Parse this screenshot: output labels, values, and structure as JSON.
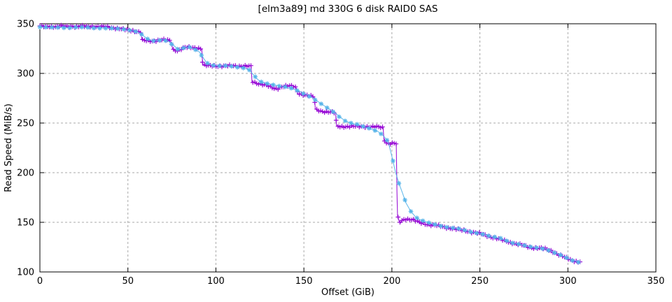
{
  "chart_data": {
    "type": "line",
    "title": "[elm3a89] md 330G 6 disk RAID0 SAS",
    "xlabel": "Offset (GiB)",
    "ylabel": "Read Speed (MiB/s)",
    "xlim": [
      0,
      350
    ],
    "ylim": [
      100,
      350
    ],
    "x_ticks": [
      0,
      50,
      100,
      150,
      200,
      250,
      300,
      350
    ],
    "y_ticks": [
      100,
      150,
      200,
      250,
      300,
      350
    ],
    "grid": true,
    "legend_position": "none",
    "background_color": "#ffffff",
    "series": [
      {
        "name": "raw-read-speed-purple-plus",
        "marker": "plus",
        "color": "#9400d3",
        "marker_spacing_gib": 1.1,
        "noise_amp": 1.0,
        "points": [
          [
            0,
            347.5
          ],
          [
            3,
            347
          ],
          [
            6,
            347.5
          ],
          [
            9,
            347
          ],
          [
            12,
            347.5
          ],
          [
            15,
            347
          ],
          [
            18,
            347.5
          ],
          [
            21,
            347
          ],
          [
            24,
            347.5
          ],
          [
            27,
            347
          ],
          [
            30,
            347.5
          ],
          [
            33,
            347
          ],
          [
            36,
            347
          ],
          [
            39,
            346.5
          ],
          [
            42,
            346
          ],
          [
            44,
            345.5
          ],
          [
            47,
            344.5
          ],
          [
            50,
            343.5
          ],
          [
            53,
            343
          ],
          [
            56,
            342
          ],
          [
            57.5,
            341.5
          ],
          [
            58,
            333.5
          ],
          [
            61,
            332.5
          ],
          [
            64,
            332.5
          ],
          [
            67,
            333.5
          ],
          [
            69,
            334
          ],
          [
            72,
            333.5
          ],
          [
            74.5,
            332.5
          ],
          [
            75.5,
            324
          ],
          [
            78,
            323
          ],
          [
            80,
            324.5
          ],
          [
            82,
            326
          ],
          [
            86,
            326
          ],
          [
            90,
            325.5
          ],
          [
            92,
            325
          ],
          [
            92.5,
            308.5
          ],
          [
            96,
            307.5
          ],
          [
            100,
            307.5
          ],
          [
            104,
            307.5
          ],
          [
            108,
            307.5
          ],
          [
            112,
            307.5
          ],
          [
            116,
            307.5
          ],
          [
            120,
            307
          ],
          [
            120.5,
            291.5
          ],
          [
            123,
            290
          ],
          [
            126,
            289.5
          ],
          [
            129,
            288
          ],
          [
            131,
            286
          ],
          [
            133,
            284.5
          ],
          [
            135,
            284.5
          ],
          [
            137,
            286.5
          ],
          [
            139,
            287.5
          ],
          [
            141,
            287.5
          ],
          [
            143,
            287
          ],
          [
            145,
            286
          ],
          [
            146,
            284
          ],
          [
            146.5,
            280
          ],
          [
            149,
            279
          ],
          [
            152,
            278
          ],
          [
            155,
            276.5
          ],
          [
            156,
            275.5
          ],
          [
            156.5,
            263.5
          ],
          [
            159,
            262.5
          ],
          [
            162,
            261.5
          ],
          [
            165,
            261
          ],
          [
            168,
            260
          ],
          [
            168.5,
            246.5
          ],
          [
            172,
            246.5
          ],
          [
            176,
            246.5
          ],
          [
            180,
            246.5
          ],
          [
            184,
            246.5
          ],
          [
            188,
            246
          ],
          [
            192,
            246
          ],
          [
            195,
            245.5
          ],
          [
            195.5,
            233.5
          ],
          [
            197,
            230
          ],
          [
            199,
            229.5
          ],
          [
            201,
            229.5
          ],
          [
            202.5,
            229
          ],
          [
            202.9,
            180
          ],
          [
            203.2,
            156
          ],
          [
            204,
            151
          ],
          [
            205,
            150
          ],
          [
            206,
            152.5
          ],
          [
            208,
            153.5
          ],
          [
            210,
            153
          ],
          [
            212,
            152.5
          ],
          [
            214,
            151
          ],
          [
            216,
            149.5
          ],
          [
            219,
            148.5
          ],
          [
            222,
            147.5
          ],
          [
            226,
            146.5
          ],
          [
            230,
            145
          ],
          [
            234,
            144
          ],
          [
            238,
            142.5
          ],
          [
            242,
            141.5
          ],
          [
            246,
            140
          ],
          [
            250,
            138.5
          ],
          [
            253,
            137
          ],
          [
            256,
            135.5
          ],
          [
            259,
            134
          ],
          [
            262,
            132.5
          ],
          [
            265,
            131
          ],
          [
            268,
            129.5
          ],
          [
            271,
            128
          ],
          [
            274,
            127
          ],
          [
            277,
            125.5
          ],
          [
            280,
            124.5
          ],
          [
            283,
            124
          ],
          [
            286,
            123.5
          ],
          [
            289,
            122.5
          ],
          [
            291,
            121
          ],
          [
            294,
            118
          ],
          [
            297,
            115.5
          ],
          [
            300,
            113.5
          ],
          [
            303,
            111.5
          ],
          [
            305,
            110.5
          ],
          [
            307,
            110
          ]
        ]
      },
      {
        "name": "smoothed-read-speed-cyan-asterisk",
        "marker": "asterisk",
        "color": "#56b4e9",
        "marker_spacing_gib": 3.4,
        "noise_amp": 0.45,
        "points": [
          [
            0,
            346.5
          ],
          [
            4,
            346
          ],
          [
            8,
            346.5
          ],
          [
            12,
            346
          ],
          [
            16,
            346
          ],
          [
            20,
            346.5
          ],
          [
            24,
            346
          ],
          [
            28,
            346
          ],
          [
            32,
            346
          ],
          [
            36,
            345.5
          ],
          [
            40,
            345.5
          ],
          [
            44,
            345
          ],
          [
            48,
            344
          ],
          [
            52,
            343.5
          ],
          [
            55,
            342.5
          ],
          [
            58,
            339
          ],
          [
            61,
            334.5
          ],
          [
            64,
            332.5
          ],
          [
            67,
            333
          ],
          [
            70,
            334
          ],
          [
            73,
            332
          ],
          [
            76,
            328
          ],
          [
            79,
            323.5
          ],
          [
            82,
            325.5
          ],
          [
            85,
            326
          ],
          [
            88,
            324.5
          ],
          [
            91,
            321
          ],
          [
            93,
            315
          ],
          [
            95,
            310.5
          ],
          [
            98,
            308
          ],
          [
            102,
            307.5
          ],
          [
            106,
            307.5
          ],
          [
            110,
            307
          ],
          [
            113,
            306.5
          ],
          [
            116,
            305.5
          ],
          [
            119,
            303
          ],
          [
            121,
            299.5
          ],
          [
            123,
            295
          ],
          [
            125,
            292
          ],
          [
            127,
            291
          ],
          [
            130,
            289.5
          ],
          [
            133,
            288.5
          ],
          [
            136,
            287.5
          ],
          [
            139,
            286.5
          ],
          [
            142,
            285
          ],
          [
            145,
            283.5
          ],
          [
            148,
            281.5
          ],
          [
            151,
            279
          ],
          [
            154,
            276
          ],
          [
            157,
            272.5
          ],
          [
            160,
            269
          ],
          [
            163,
            265.5
          ],
          [
            166,
            262
          ],
          [
            169,
            258
          ],
          [
            172,
            254
          ],
          [
            175,
            251
          ],
          [
            178,
            249
          ],
          [
            181,
            248
          ],
          [
            184,
            246.5
          ],
          [
            187,
            245
          ],
          [
            190,
            243
          ],
          [
            192,
            241
          ],
          [
            194,
            239
          ],
          [
            196,
            236
          ],
          [
            198,
            230.5
          ],
          [
            200,
            216
          ],
          [
            202,
            201
          ],
          [
            204,
            189
          ],
          [
            206,
            179.5
          ],
          [
            208,
            170
          ],
          [
            210,
            163.5
          ],
          [
            212,
            158
          ],
          [
            214,
            154.5
          ],
          [
            216,
            152.5
          ],
          [
            218,
            151
          ],
          [
            221,
            149.5
          ],
          [
            225,
            147.5
          ],
          [
            229,
            146
          ],
          [
            233,
            145
          ],
          [
            237,
            143.5
          ],
          [
            241,
            142
          ],
          [
            245,
            140.5
          ],
          [
            249,
            139
          ],
          [
            253,
            137.5
          ],
          [
            257,
            135.5
          ],
          [
            260,
            134.5
          ],
          [
            263,
            133
          ],
          [
            266,
            131
          ],
          [
            269,
            129.5
          ],
          [
            272,
            128
          ],
          [
            275,
            126.5
          ],
          [
            278,
            125.5
          ],
          [
            281,
            124.5
          ],
          [
            284,
            124
          ],
          [
            287,
            123
          ],
          [
            290,
            121.5
          ],
          [
            293,
            119
          ],
          [
            296,
            116.5
          ],
          [
            299,
            114
          ],
          [
            302,
            112
          ],
          [
            305,
            110.5
          ],
          [
            306.5,
            110
          ]
        ]
      }
    ]
  }
}
